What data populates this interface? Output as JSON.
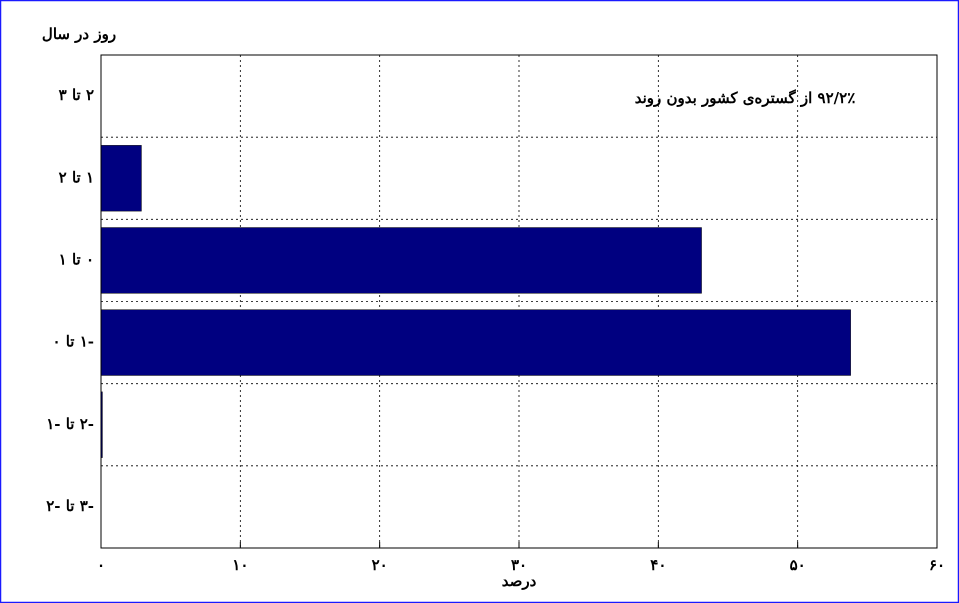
{
  "chart_data": {
    "type": "barh",
    "ylabel": "روز در سال",
    "xlabel": "درصد",
    "annotation": "۹۲/۲٪ از گستره‌ی کشور بدون روند",
    "categories": [
      "۲ تا ۳",
      "۱ تا ۲",
      "۰ تا ۱",
      "-۱ تا ۰",
      "-۲ تا -۱",
      "-۳ تا -۲"
    ],
    "values": [
      0,
      2.9,
      43.1,
      53.8,
      0.1,
      0
    ],
    "color": "#000080",
    "xlim": [
      0,
      60
    ],
    "xticks": [
      {
        "value": 0,
        "label": "۰"
      },
      {
        "value": 10,
        "label": "۱۰"
      },
      {
        "value": 20,
        "label": "۲۰"
      },
      {
        "value": 30,
        "label": "۳۰"
      },
      {
        "value": 40,
        "label": "۴۰"
      },
      {
        "value": 50,
        "label": "۵۰"
      },
      {
        "value": 60,
        "label": "۶۰"
      }
    ],
    "grid": true
  }
}
